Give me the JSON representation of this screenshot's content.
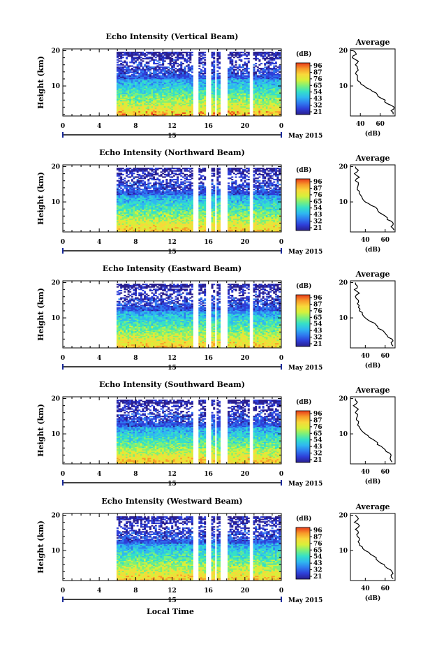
{
  "figure": {
    "xlabel": "Local Time",
    "date_label": "May 2015",
    "day_label": "15",
    "colorbar_unit": "(dB)",
    "colorbar_ticks": [
      "96",
      "87",
      "76",
      "65",
      "54",
      "43",
      "32",
      "21"
    ],
    "colormap": [
      "#2a1f8f",
      "#2e3fd8",
      "#2f7bf0",
      "#2fb8f0",
      "#35e0c8",
      "#7cf07a",
      "#d8f03a",
      "#f8d83a",
      "#f89a2a",
      "#e83a1a"
    ]
  },
  "chart_data": [
    {
      "type": "heatmap",
      "title": "Echo Intensity (Vertical Beam)",
      "xlabel": "Local Time",
      "ylabel": "Height (km)",
      "x_ticks": [
        "0",
        "4",
        "8",
        "12",
        "16",
        "20",
        "0"
      ],
      "y_ticks": [
        "10",
        "20"
      ],
      "xlim": [
        0,
        24
      ],
      "ylim": [
        1.5,
        20.5
      ],
      "data_start_hour": 5.9,
      "gaps_hours": [
        [
          14.2,
          14.8
        ],
        [
          15.6,
          16.2
        ],
        [
          16.6,
          16.9
        ],
        [
          17.2,
          18.0
        ],
        [
          20.4,
          20.8
        ]
      ],
      "clim_db": [
        21,
        96
      ],
      "profile": {
        "title": "Average",
        "xlabel": "(dB)",
        "x_ticks": [
          "40",
          "60"
        ],
        "xlim": [
          30,
          75
        ],
        "heights_km": [
          2,
          3,
          4,
          5,
          6,
          7,
          8,
          9,
          10,
          11,
          12,
          13,
          14,
          15,
          16,
          17,
          18,
          19,
          20
        ],
        "values_db": [
          73,
          71,
          74,
          67,
          65,
          58,
          56,
          50,
          44,
          40,
          37,
          37,
          36,
          37,
          35,
          38,
          32,
          36,
          33
        ]
      }
    },
    {
      "type": "heatmap",
      "title": "Echo Intensity (Northward Beam)",
      "xlabel": "Local Time",
      "ylabel": "Height (km)",
      "x_ticks": [
        "0",
        "4",
        "8",
        "12",
        "16",
        "20",
        "0"
      ],
      "y_ticks": [
        "10",
        "20"
      ],
      "xlim": [
        0,
        24
      ],
      "ylim": [
        1.5,
        20.5
      ],
      "data_start_hour": 5.9,
      "gaps_hours": [
        [
          14.2,
          14.8
        ],
        [
          15.6,
          16.2
        ],
        [
          16.6,
          16.9
        ],
        [
          17.2,
          18.0
        ],
        [
          20.4,
          20.8
        ]
      ],
      "clim_db": [
        21,
        96
      ],
      "profile": {
        "title": "Average",
        "xlabel": "(dB)",
        "x_ticks": [
          "40",
          "60"
        ],
        "xlim": [
          25,
          70
        ],
        "heights_km": [
          2,
          3,
          4,
          5,
          6,
          7,
          8,
          9,
          10,
          11,
          12,
          13,
          14,
          15,
          16,
          17,
          18,
          19,
          20
        ],
        "values_db": [
          69,
          66,
          68,
          62,
          60,
          54,
          52,
          46,
          40,
          37,
          35,
          34,
          32,
          33,
          30,
          34,
          29,
          33,
          30
        ]
      }
    },
    {
      "type": "heatmap",
      "title": "Echo Intensity (Eastward Beam)",
      "xlabel": "Local Time",
      "ylabel": "Height (km)",
      "x_ticks": [
        "0",
        "4",
        "8",
        "12",
        "16",
        "20",
        "0"
      ],
      "y_ticks": [
        "10",
        "20"
      ],
      "xlim": [
        0,
        24
      ],
      "ylim": [
        1.5,
        20.5
      ],
      "data_start_hour": 5.9,
      "gaps_hours": [
        [
          14.2,
          14.8
        ],
        [
          15.6,
          16.2
        ],
        [
          16.6,
          16.9
        ],
        [
          17.2,
          18.0
        ],
        [
          20.4,
          20.8
        ]
      ],
      "clim_db": [
        21,
        96
      ],
      "profile": {
        "title": "Average",
        "xlabel": "(dB)",
        "x_ticks": [
          "40",
          "60"
        ],
        "xlim": [
          25,
          70
        ],
        "heights_km": [
          2,
          3,
          4,
          5,
          6,
          7,
          8,
          9,
          10,
          11,
          12,
          13,
          14,
          15,
          16,
          17,
          18,
          19,
          20
        ],
        "values_db": [
          68,
          66,
          67,
          62,
          59,
          53,
          51,
          45,
          40,
          37,
          34,
          33,
          32,
          33,
          30,
          34,
          29,
          32,
          30
        ]
      }
    },
    {
      "type": "heatmap",
      "title": "Echo Intensity (Southward Beam)",
      "xlabel": "Local Time",
      "ylabel": "Height (km)",
      "x_ticks": [
        "0",
        "4",
        "8",
        "12",
        "16",
        "20",
        "0"
      ],
      "y_ticks": [
        "10",
        "20"
      ],
      "xlim": [
        0,
        24
      ],
      "ylim": [
        1.5,
        20.5
      ],
      "data_start_hour": 5.9,
      "gaps_hours": [
        [
          14.2,
          14.8
        ],
        [
          15.6,
          16.2
        ],
        [
          16.6,
          16.9
        ],
        [
          17.2,
          18.0
        ],
        [
          20.4,
          20.8
        ]
      ],
      "clim_db": [
        21,
        96
      ],
      "profile": {
        "title": "Average",
        "xlabel": "(dB)",
        "x_ticks": [
          "40",
          "60"
        ],
        "xlim": [
          25,
          70
        ],
        "heights_km": [
          2,
          3,
          4,
          5,
          6,
          7,
          8,
          9,
          10,
          11,
          12,
          13,
          14,
          15,
          16,
          17,
          18,
          19,
          20
        ],
        "values_db": [
          67,
          65,
          66,
          61,
          58,
          52,
          50,
          44,
          40,
          36,
          34,
          33,
          31,
          32,
          30,
          33,
          28,
          32,
          30
        ]
      }
    },
    {
      "type": "heatmap",
      "title": "Echo Intensity (Westward Beam)",
      "xlabel": "Local Time",
      "ylabel": "Height (km)",
      "x_ticks": [
        "0",
        "4",
        "8",
        "12",
        "16",
        "20",
        "0"
      ],
      "y_ticks": [
        "10",
        "20"
      ],
      "xlim": [
        0,
        24
      ],
      "ylim": [
        1.5,
        20.5
      ],
      "data_start_hour": 5.9,
      "gaps_hours": [
        [
          14.2,
          14.8
        ],
        [
          15.6,
          16.2
        ],
        [
          16.6,
          16.9
        ],
        [
          17.2,
          18.0
        ],
        [
          20.4,
          20.8
        ]
      ],
      "clim_db": [
        21,
        96
      ],
      "profile": {
        "title": "Average",
        "xlabel": "(dB)",
        "x_ticks": [
          "40",
          "60"
        ],
        "xlim": [
          25,
          70
        ],
        "heights_km": [
          2,
          3,
          4,
          5,
          6,
          7,
          8,
          9,
          10,
          11,
          12,
          13,
          14,
          15,
          16,
          17,
          18,
          19,
          20
        ],
        "values_db": [
          68,
          66,
          67,
          62,
          59,
          53,
          51,
          45,
          40,
          37,
          34,
          34,
          32,
          33,
          30,
          34,
          29,
          33,
          30
        ]
      }
    }
  ]
}
